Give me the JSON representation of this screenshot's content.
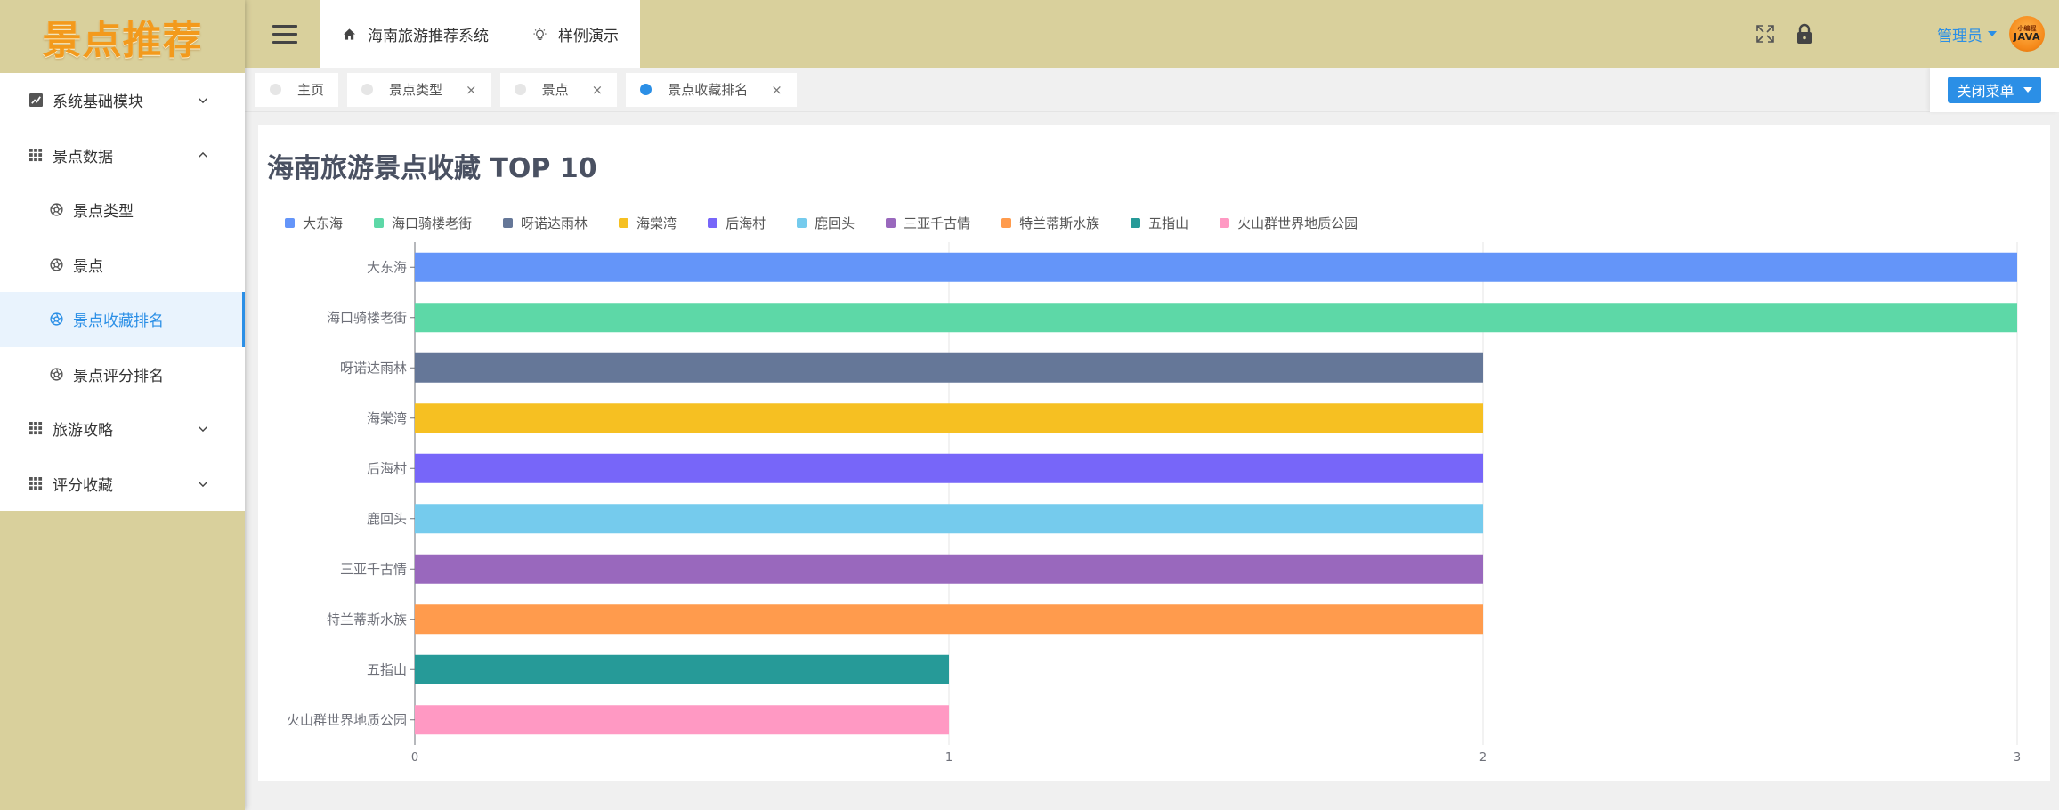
{
  "app": {
    "logo_text": "景点推荐"
  },
  "sidebar": {
    "items": [
      {
        "label": "系统基础模块",
        "icon": "chart-icon",
        "chevron": "down",
        "level": 1
      },
      {
        "label": "景点数据",
        "icon": "grid-icon",
        "chevron": "up",
        "level": 1
      },
      {
        "label": "景点类型",
        "icon": "aperture-icon",
        "level": 2
      },
      {
        "label": "景点",
        "icon": "aperture-icon",
        "level": 2
      },
      {
        "label": "景点收藏排名",
        "icon": "aperture-icon",
        "level": 2,
        "active": true
      },
      {
        "label": "景点评分排名",
        "icon": "aperture-icon",
        "level": 2
      },
      {
        "label": "旅游攻略",
        "icon": "grid-icon",
        "chevron": "down",
        "level": 1
      },
      {
        "label": "评分收藏",
        "icon": "grid-icon",
        "chevron": "down",
        "level": 1
      }
    ]
  },
  "header": {
    "nav": [
      {
        "label": "海南旅游推荐系统",
        "icon": "home-icon"
      },
      {
        "label": "样例演示",
        "icon": "bulb-icon"
      }
    ],
    "user_name": "管理员",
    "avatar_top": "小编程",
    "avatar_main": "JAVA"
  },
  "tabs": {
    "items": [
      {
        "label": "主页",
        "closable": false,
        "active": false
      },
      {
        "label": "景点类型",
        "closable": true,
        "active": false
      },
      {
        "label": "景点",
        "closable": true,
        "active": false
      },
      {
        "label": "景点收藏排名",
        "closable": true,
        "active": true
      }
    ],
    "close_symbol": "×",
    "close_menu_label": "关闭菜单"
  },
  "colors": {
    "accent": "#2b8fe6",
    "sidebar_bg": "#d9d09c"
  },
  "chart_data": {
    "type": "bar",
    "orientation": "horizontal",
    "title": "海南旅游景点收藏 TOP 10",
    "categories": [
      "大东海",
      "海口骑楼老街",
      "呀诺达雨林",
      "海棠湾",
      "后海村",
      "鹿回头",
      "三亚千古情",
      "特兰蒂斯水族",
      "五指山",
      "火山群世界地质公园"
    ],
    "values": [
      3,
      3,
      2,
      2,
      2,
      2,
      2,
      2,
      1,
      1
    ],
    "colors": [
      "#6495f9",
      "#5dd8a7",
      "#657798",
      "#f6c022",
      "#7766f9",
      "#75cbed",
      "#9968bd",
      "#ff9b4d",
      "#269a98",
      "#ff99c3"
    ],
    "xlim": [
      0,
      3
    ],
    "xticks": [
      0,
      1,
      2,
      3
    ],
    "grid": true,
    "legend": "top-left"
  }
}
